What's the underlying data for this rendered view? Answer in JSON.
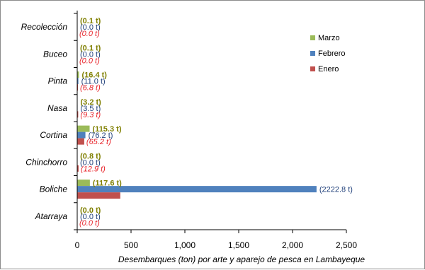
{
  "chart_data": {
    "type": "bar",
    "orientation": "horizontal",
    "xlabel": "Desembarques (ton) por arte y aparejo de pesca en Lambayeque",
    "xlim": [
      0,
      2500
    ],
    "xticks": [
      0,
      500,
      1000,
      1500,
      2000,
      2500
    ],
    "xtick_labels": [
      "0",
      "500",
      "1,000",
      "1,500",
      "2,000",
      "2,500"
    ],
    "categories": [
      "Recolección",
      "Buceo",
      "Pinta",
      "Nasa",
      "Cortina",
      "Chinchorro",
      "Boliche",
      "Atarraya"
    ],
    "series": [
      {
        "name": "Marzo",
        "color": "#9bbb59",
        "label_color": "#7f7f00",
        "values": [
          0.1,
          0.1,
          16.4,
          3.2,
          115.3,
          0.8,
          117.6,
          0.0
        ],
        "labels": [
          "(0.1 t)",
          "(0.1 t)",
          "(16.4 t)",
          "(3.2 t)",
          "(115.3 t)",
          "(0.8 t)",
          "(117.6 t)",
          "(0.0 t)"
        ]
      },
      {
        "name": "Febrero",
        "color": "#4f81bd",
        "label_color": "#1f3f7a",
        "values": [
          0.0,
          0.0,
          11.0,
          3.5,
          76.2,
          0.0,
          2222.8,
          0.0
        ],
        "labels": [
          "(0.0 t)",
          "(0.0 t)",
          "(11.0 t)",
          "(3.5 t)",
          "(76.2 t)",
          "(0.0 t)",
          "(2222.8 t)",
          "(0.0 t)"
        ]
      },
      {
        "name": "Enero",
        "color": "#c0504d",
        "label_color": "#e8232a",
        "values": [
          0.0,
          0.0,
          6.8,
          9.3,
          65.2,
          12.9,
          400,
          0.0
        ],
        "labels": [
          "(0.0 t)",
          "(0.0 t)",
          "(6.8 t)",
          "(9.3 t)",
          "(65.2 t)",
          "(12.9 t)",
          "",
          "(0.0 t)"
        ]
      }
    ],
    "legend": {
      "position": "right",
      "order": [
        "Marzo",
        "Febrero",
        "Enero"
      ]
    },
    "grid": false
  }
}
